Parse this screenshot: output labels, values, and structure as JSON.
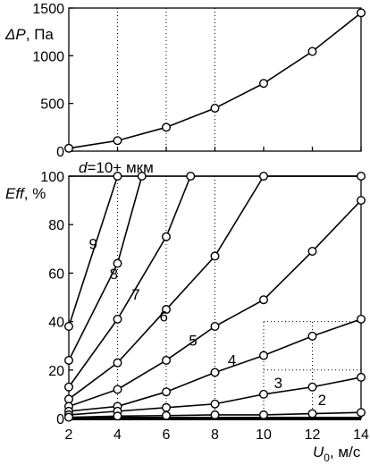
{
  "chart_data": [
    {
      "type": "line",
      "ylabel_main": "ΔP",
      "ylabel_unit": ", Па",
      "xlim": [
        2,
        14
      ],
      "ylim": [
        0,
        1500
      ],
      "yticks": [
        0,
        500,
        1000,
        1500
      ],
      "grid": "dotted at x = 4, 6, 8",
      "series": [
        {
          "x": [
            2,
            4,
            6,
            8,
            10,
            12,
            14
          ],
          "y": [
            30,
            110,
            250,
            450,
            710,
            1045,
            1450
          ]
        }
      ]
    },
    {
      "type": "line",
      "ylabel_main": "Eff",
      "ylabel_unit": ", %",
      "xlabel_main": "U",
      "xlabel_sub": "0",
      "xlabel_unit": ", м/с",
      "xlim": [
        2,
        14
      ],
      "ylim": [
        0,
        100
      ],
      "xticks": [
        2,
        4,
        6,
        8,
        10,
        12,
        14
      ],
      "yticks": [
        0,
        20,
        40,
        60,
        80,
        100
      ],
      "top_label": {
        "main": "d",
        "rest": "=10+ мкм"
      },
      "grid": "dotted",
      "series": [
        {
          "name": "9",
          "x": [
            2,
            4
          ],
          "y": [
            38,
            100
          ]
        },
        {
          "name": "8",
          "x": [
            2,
            4,
            5
          ],
          "y": [
            24,
            64,
            100
          ]
        },
        {
          "name": "7",
          "x": [
            2,
            4,
            6,
            7
          ],
          "y": [
            13,
            41,
            75,
            100
          ]
        },
        {
          "name": "6",
          "x": [
            2,
            4,
            6,
            8,
            10,
            14
          ],
          "y": [
            8,
            23,
            45,
            67,
            100,
            100
          ]
        },
        {
          "name": "5",
          "x": [
            2,
            4,
            6,
            8,
            10,
            12,
            14
          ],
          "y": [
            5,
            12,
            24,
            38,
            49,
            69,
            90
          ]
        },
        {
          "name": "4",
          "x": [
            2,
            4,
            6,
            8,
            10,
            12,
            14
          ],
          "y": [
            3,
            5,
            11,
            19,
            26,
            34,
            41
          ]
        },
        {
          "name": "3",
          "x": [
            2,
            4,
            6,
            8,
            10,
            12,
            14
          ],
          "y": [
            1.5,
            3,
            4.5,
            6,
            10,
            13,
            17
          ]
        },
        {
          "name": "2",
          "x": [
            2,
            4,
            6,
            8,
            10,
            12,
            14
          ],
          "y": [
            0.5,
            1,
            1.2,
            1.5,
            1.5,
            2,
            2.5
          ]
        },
        {
          "name": "",
          "x": [
            2,
            14
          ],
          "y": [
            0,
            0
          ]
        }
      ],
      "top_line": {
        "x": [
          2,
          14
        ],
        "y": [
          100,
          100
        ]
      }
    }
  ]
}
